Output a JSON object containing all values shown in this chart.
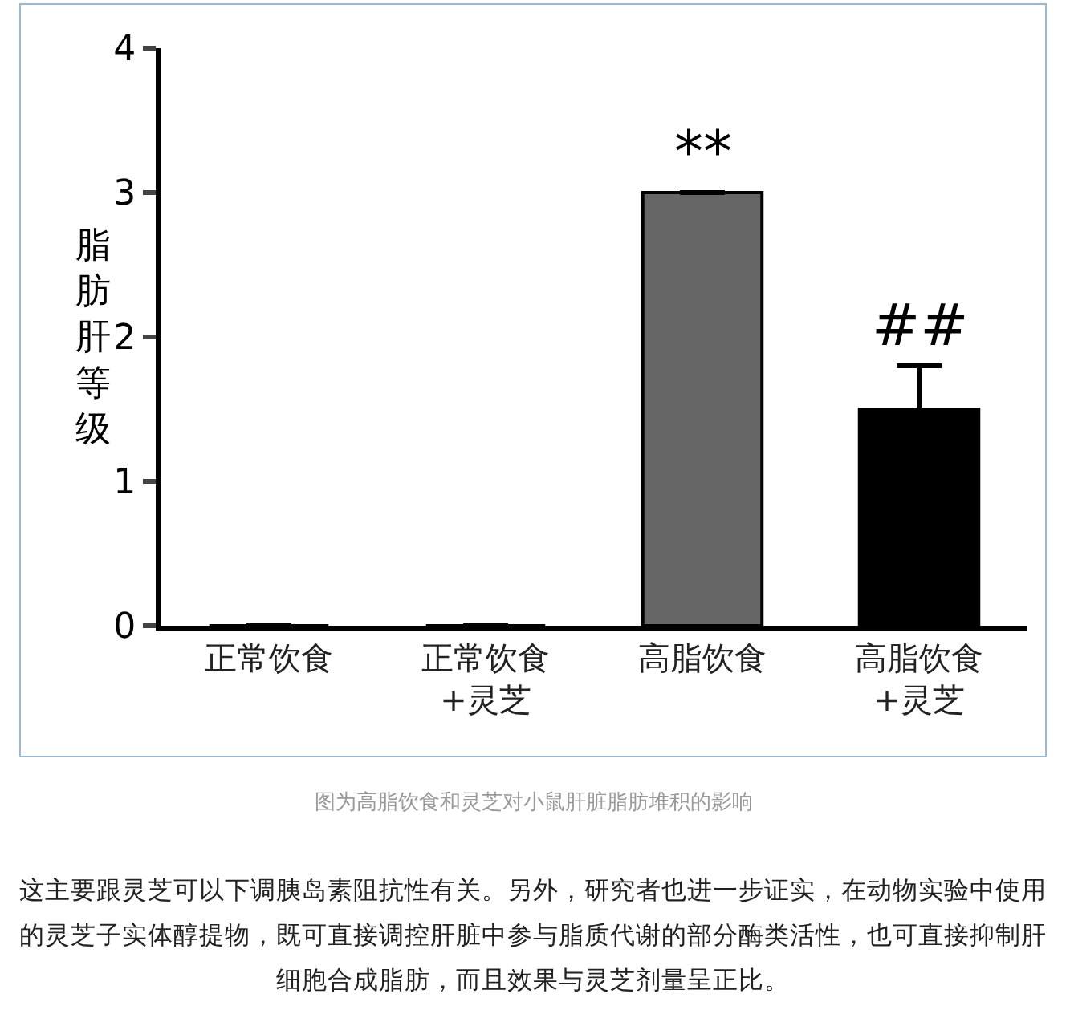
{
  "chart_data": {
    "type": "bar",
    "categories": [
      "正常饮食",
      "正常饮食\n+灵芝",
      "高脂饮食",
      "高脂饮食\n+灵芝"
    ],
    "values": [
      0,
      0,
      3,
      1.5
    ],
    "colors": [
      "#000000",
      "#000000",
      "#666666",
      "#000000"
    ],
    "errors": [
      null,
      null,
      null,
      0.3
    ],
    "ylabel": "脂肪肝等级",
    "ylim": [
      0,
      4
    ],
    "yticks": [
      0,
      1,
      2,
      3,
      4
    ],
    "grid": false,
    "legend": false,
    "annotations": [
      {
        "text": "**",
        "x": "高脂饮食",
        "y": 3
      },
      {
        "text": "##",
        "x": "高脂饮食\n+灵芝",
        "y": 1.8
      },
      "图为高脂饮食和灵芝对小鼠肝脏脂肪堆积的影响",
      "这主要跟灵芝可以下调胰岛素阻抗性有关。另外，研究者也进一步证实，在动物实验中使用",
      "的灵芝子实体醇提物，既可直接调控肝脏中参与脂质代谢的部分酶类活性，也可直接抑制肝",
      "细胞合成脂肪，而且效果与灵芝剂量呈正比。"
    ]
  }
}
